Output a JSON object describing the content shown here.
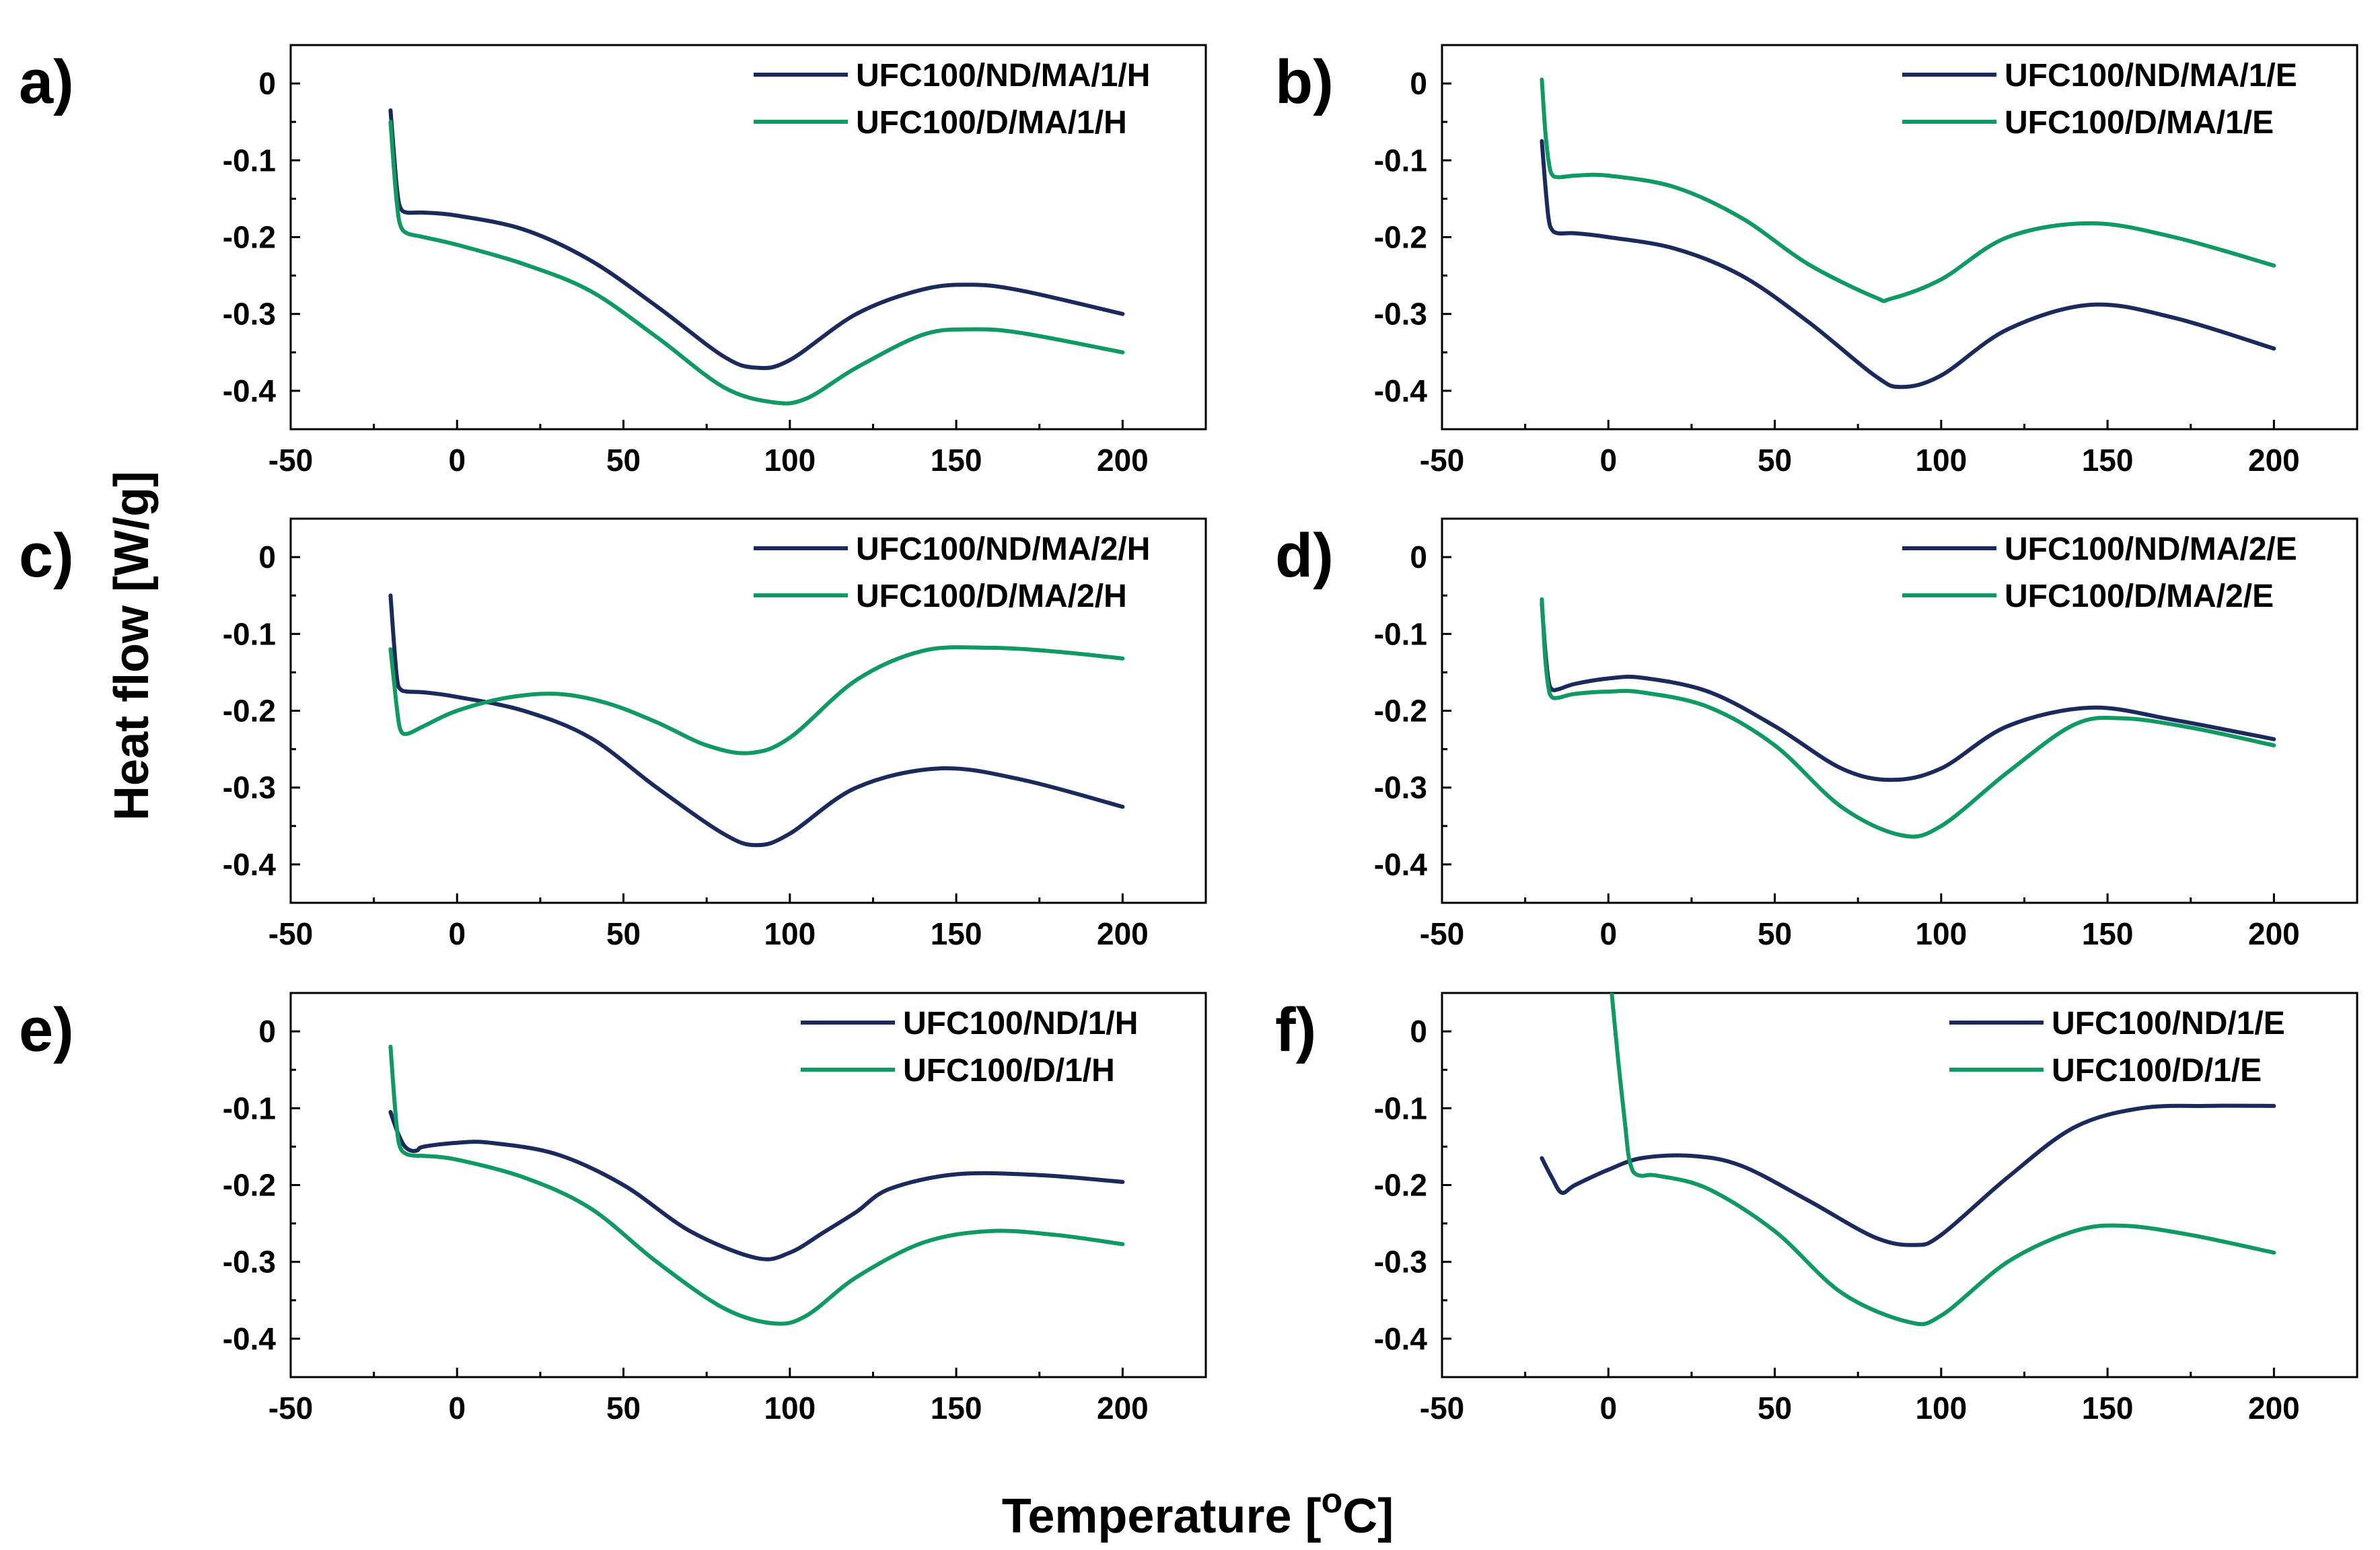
{
  "colors": {
    "navy": "#1b2a5c",
    "green": "#0e9a62"
  },
  "y_axis_title": "Heat flow [W/g]",
  "x_axis_title": {
    "main": "Temperature [",
    "superscript": "o",
    "unit": "C]"
  },
  "chart_data": [
    {
      "panel": "a)",
      "type": "line",
      "xlim": [
        -50,
        225
      ],
      "ylim": [
        -0.45,
        0.05
      ],
      "xticks": [
        -50,
        0,
        50,
        100,
        150,
        200
      ],
      "xtick_labels": [
        "-50",
        "0",
        "50",
        "100",
        "150",
        "200"
      ],
      "yticks": [
        0,
        -0.1,
        -0.2,
        -0.3,
        -0.4
      ],
      "ytick_labels": [
        "0",
        "-0.1",
        "-0.2",
        "-0.3",
        "-0.4"
      ],
      "legend_position": "top-right",
      "series": [
        {
          "name": "UFC100/ND/MA/1/H",
          "color": "navy",
          "x": [
            -20,
            -19,
            -18,
            -17,
            -15,
            -10,
            0,
            20,
            40,
            60,
            80,
            90,
            100,
            120,
            140,
            155,
            170,
            200
          ],
          "y": [
            -0.035,
            -0.09,
            -0.14,
            -0.162,
            -0.168,
            -0.168,
            -0.172,
            -0.19,
            -0.23,
            -0.29,
            -0.355,
            -0.37,
            -0.36,
            -0.3,
            -0.268,
            -0.262,
            -0.27,
            -0.3
          ]
        },
        {
          "name": "UFC100/D/MA/1/H",
          "color": "green",
          "x": [
            -20,
            -19,
            -18,
            -17,
            -15,
            -10,
            0,
            20,
            40,
            60,
            80,
            95,
            105,
            120,
            140,
            155,
            170,
            200
          ],
          "y": [
            -0.05,
            -0.11,
            -0.16,
            -0.185,
            -0.195,
            -0.2,
            -0.21,
            -0.235,
            -0.27,
            -0.33,
            -0.395,
            -0.415,
            -0.41,
            -0.37,
            -0.327,
            -0.32,
            -0.325,
            -0.35
          ]
        }
      ]
    },
    {
      "panel": "b)",
      "type": "line",
      "xlim": [
        -50,
        225
      ],
      "ylim": [
        -0.45,
        0.05
      ],
      "xticks": [
        -50,
        0,
        50,
        100,
        150,
        200
      ],
      "xtick_labels": [
        "-50",
        "0",
        "50",
        "100",
        "150",
        "200"
      ],
      "yticks": [
        0,
        -0.1,
        -0.2,
        -0.3,
        -0.4
      ],
      "ytick_labels": [
        "0",
        "-0.1",
        "-0.2",
        "-0.3",
        "-0.4"
      ],
      "legend_position": "top-right",
      "series": [
        {
          "name": "UFC100/ND/MA/1/E",
          "color": "navy",
          "x": [
            -20,
            -19,
            -18,
            -17,
            -15,
            -10,
            0,
            20,
            40,
            60,
            80,
            88,
            100,
            120,
            145,
            170,
            200
          ],
          "y": [
            -0.075,
            -0.13,
            -0.175,
            -0.19,
            -0.195,
            -0.195,
            -0.2,
            -0.215,
            -0.25,
            -0.31,
            -0.38,
            -0.395,
            -0.38,
            -0.32,
            -0.288,
            -0.305,
            -0.345
          ]
        },
        {
          "name": "UFC100/D/MA/1/E",
          "color": "green",
          "x": [
            -20,
            -19,
            -18,
            -17,
            -15,
            -10,
            0,
            20,
            40,
            60,
            80,
            85,
            100,
            120,
            145,
            170,
            200
          ],
          "y": [
            0.005,
            -0.06,
            -0.1,
            -0.118,
            -0.122,
            -0.12,
            -0.12,
            -0.135,
            -0.175,
            -0.235,
            -0.278,
            -0.28,
            -0.255,
            -0.2,
            -0.182,
            -0.2,
            -0.237
          ]
        }
      ]
    },
    {
      "panel": "c)",
      "type": "line",
      "xlim": [
        -50,
        225
      ],
      "ylim": [
        -0.45,
        0.05
      ],
      "xticks": [
        -50,
        0,
        50,
        100,
        150,
        200
      ],
      "xtick_labels": [
        "-50",
        "0",
        "50",
        "100",
        "150",
        "200"
      ],
      "yticks": [
        0,
        -0.1,
        -0.2,
        -0.3,
        -0.4
      ],
      "ytick_labels": [
        "0",
        "-0.1",
        "-0.2",
        "-0.3",
        "-0.4"
      ],
      "legend_position": "top-right",
      "series": [
        {
          "name": "UFC100/ND/MA/2/H",
          "color": "navy",
          "x": [
            -20,
            -19,
            -18,
            -17,
            -15,
            -10,
            0,
            20,
            40,
            60,
            80,
            90,
            100,
            120,
            145,
            170,
            200
          ],
          "y": [
            -0.05,
            -0.11,
            -0.16,
            -0.172,
            -0.175,
            -0.176,
            -0.182,
            -0.2,
            -0.235,
            -0.3,
            -0.36,
            -0.375,
            -0.36,
            -0.3,
            -0.275,
            -0.29,
            -0.325
          ]
        },
        {
          "name": "UFC100/D/MA/2/H",
          "color": "green",
          "x": [
            -20,
            -19,
            -18,
            -17,
            -15,
            -10,
            0,
            15,
            30,
            45,
            60,
            75,
            88,
            100,
            120,
            140,
            160,
            180,
            200
          ],
          "y": [
            -0.12,
            -0.16,
            -0.2,
            -0.225,
            -0.23,
            -0.22,
            -0.2,
            -0.183,
            -0.178,
            -0.19,
            -0.215,
            -0.245,
            -0.255,
            -0.235,
            -0.16,
            -0.122,
            -0.118,
            -0.123,
            -0.132
          ]
        }
      ]
    },
    {
      "panel": "d)",
      "type": "line",
      "xlim": [
        -50,
        225
      ],
      "ylim": [
        -0.45,
        0.05
      ],
      "xticks": [
        -50,
        0,
        50,
        100,
        150,
        200
      ],
      "xtick_labels": [
        "-50",
        "0",
        "50",
        "100",
        "150",
        "200"
      ],
      "yticks": [
        0,
        -0.1,
        -0.2,
        -0.3,
        -0.4
      ],
      "ytick_labels": [
        "0",
        "-0.1",
        "-0.2",
        "-0.3",
        "-0.4"
      ],
      "legend_position": "top-right",
      "series": [
        {
          "name": "UFC100/ND/MA/2/E",
          "color": "navy",
          "x": [
            -20,
            -19,
            -18,
            -17,
            -15,
            -10,
            0,
            10,
            30,
            50,
            70,
            85,
            100,
            120,
            145,
            170,
            200
          ],
          "y": [
            -0.06,
            -0.12,
            -0.16,
            -0.172,
            -0.172,
            -0.165,
            -0.158,
            -0.157,
            -0.175,
            -0.22,
            -0.275,
            -0.29,
            -0.275,
            -0.22,
            -0.196,
            -0.212,
            -0.237
          ]
        },
        {
          "name": "UFC100/D/MA/2/E",
          "color": "green",
          "x": [
            -20,
            -19,
            -18,
            -17,
            -15,
            -10,
            0,
            10,
            30,
            50,
            70,
            88,
            100,
            120,
            140,
            155,
            175,
            200
          ],
          "y": [
            -0.055,
            -0.13,
            -0.17,
            -0.182,
            -0.183,
            -0.178,
            -0.175,
            -0.176,
            -0.195,
            -0.245,
            -0.325,
            -0.362,
            -0.35,
            -0.28,
            -0.218,
            -0.21,
            -0.222,
            -0.245
          ]
        }
      ]
    },
    {
      "panel": "e)",
      "type": "line",
      "xlim": [
        -50,
        225
      ],
      "ylim": [
        -0.45,
        0.05
      ],
      "xticks": [
        -50,
        0,
        50,
        100,
        150,
        200
      ],
      "xtick_labels": [
        "-50",
        "0",
        "50",
        "100",
        "150",
        "200"
      ],
      "yticks": [
        0,
        -0.1,
        -0.2,
        -0.3,
        -0.4
      ],
      "ytick_labels": [
        "0",
        "-0.1",
        "-0.2",
        "-0.3",
        "-0.4"
      ],
      "legend_position": "top-right",
      "series": [
        {
          "name": "UFC100/ND/1/H",
          "color": "navy",
          "x": [
            -20,
            -18,
            -16,
            -14,
            -12,
            -10,
            0,
            10,
            30,
            50,
            70,
            90,
            100,
            110,
            120,
            130,
            150,
            175,
            200
          ],
          "y": [
            -0.105,
            -0.13,
            -0.148,
            -0.155,
            -0.155,
            -0.15,
            -0.145,
            -0.145,
            -0.16,
            -0.2,
            -0.26,
            -0.295,
            -0.288,
            -0.262,
            -0.235,
            -0.205,
            -0.186,
            -0.187,
            -0.196
          ]
        },
        {
          "name": "UFC100/D/1/H",
          "color": "green",
          "x": [
            -20,
            -19,
            -18,
            -17,
            -15,
            -12,
            -10,
            0,
            20,
            40,
            60,
            80,
            95,
            105,
            120,
            140,
            160,
            180,
            200
          ],
          "y": [
            -0.02,
            -0.08,
            -0.13,
            -0.152,
            -0.16,
            -0.162,
            -0.162,
            -0.167,
            -0.19,
            -0.23,
            -0.3,
            -0.36,
            -0.38,
            -0.37,
            -0.32,
            -0.275,
            -0.26,
            -0.265,
            -0.277
          ]
        }
      ]
    },
    {
      "panel": "f)",
      "type": "line",
      "xlim": [
        -50,
        225
      ],
      "ylim": [
        -0.45,
        0.05
      ],
      "xticks": [
        -50,
        0,
        50,
        100,
        150,
        200
      ],
      "xtick_labels": [
        "-50",
        "0",
        "50",
        "100",
        "150",
        "200"
      ],
      "yticks": [
        0,
        -0.1,
        -0.2,
        -0.3,
        -0.4
      ],
      "ytick_labels": [
        "0",
        "-0.1",
        "-0.2",
        "-0.3",
        "-0.4"
      ],
      "legend_position": "top-right",
      "series": [
        {
          "name": "UFC100/ND/1/E",
          "color": "navy",
          "x": [
            -20,
            -17,
            -14,
            -10,
            0,
            10,
            25,
            40,
            60,
            80,
            92,
            100,
            120,
            140,
            160,
            180,
            200
          ],
          "y": [
            -0.165,
            -0.19,
            -0.21,
            -0.2,
            -0.18,
            -0.165,
            -0.162,
            -0.175,
            -0.22,
            -0.268,
            -0.278,
            -0.265,
            -0.19,
            -0.125,
            -0.1,
            -0.097,
            -0.097
          ]
        },
        {
          "name": "UFC100/D/1/E",
          "color": "green",
          "x": [
            1,
            3,
            5,
            6,
            7,
            8,
            10,
            15,
            30,
            50,
            70,
            90,
            100,
            120,
            140,
            155,
            175,
            200
          ],
          "y": [
            0.05,
            -0.04,
            -0.12,
            -0.16,
            -0.178,
            -0.185,
            -0.188,
            -0.188,
            -0.205,
            -0.26,
            -0.34,
            -0.378,
            -0.37,
            -0.3,
            -0.26,
            -0.253,
            -0.265,
            -0.288
          ]
        }
      ]
    }
  ]
}
